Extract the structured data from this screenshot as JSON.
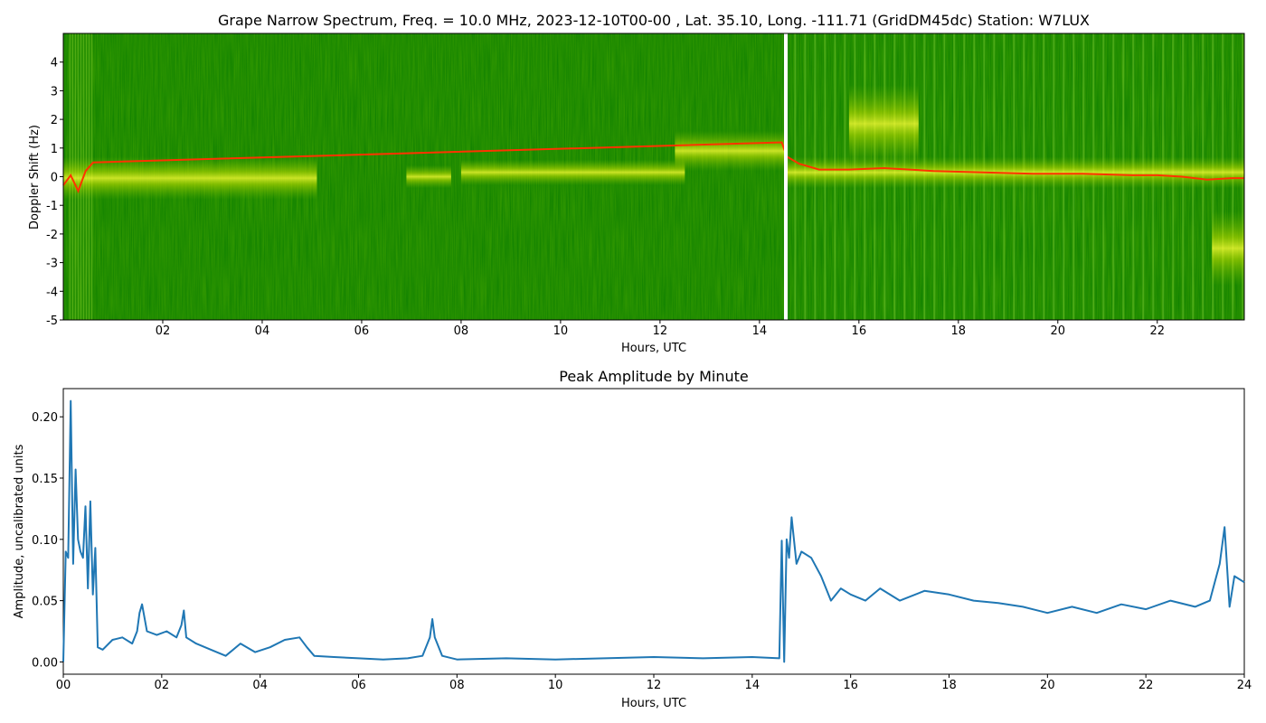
{
  "chart_data": [
    {
      "type": "heatmap",
      "title": "Grape Narrow Spectrum, Freq. = 10.0 MHz, 2023-12-10T00-00 , Lat.  35.10, Long. -111.71 (GridDM45dc) Station: W7LUX",
      "xlabel": "Hours, UTC",
      "ylabel": "Doppler Shift (Hz)",
      "xlim": [
        0,
        23.75
      ],
      "ylim": [
        -5,
        5
      ],
      "x_ticks": [
        "02",
        "04",
        "06",
        "08",
        "10",
        "12",
        "14",
        "16",
        "18",
        "20",
        "22"
      ],
      "x_tick_hours": [
        2,
        4,
        6,
        8,
        10,
        12,
        14,
        16,
        18,
        20,
        22
      ],
      "y_ticks": [
        4,
        3,
        2,
        1,
        0,
        -1,
        -2,
        -3,
        -4,
        -5
      ],
      "grid": false,
      "colors": {
        "background": "#0a7d00",
        "mid": "#7fbf00",
        "high": "#ffff00",
        "peak": "#ff3300",
        "gap": "#ffffff"
      },
      "gap_hour": 14.53,
      "doppler_trace": {
        "x": [
          0.0,
          0.15,
          0.3,
          0.45,
          0.6,
          14.45,
          14.55,
          14.8,
          15.2,
          15.8,
          16.5,
          17.5,
          18.5,
          19.5,
          20.5,
          21.5,
          22.0,
          22.5,
          23.0,
          23.5,
          23.75
        ],
        "y": [
          -0.3,
          0.05,
          -0.5,
          0.2,
          0.5,
          1.2,
          0.7,
          0.45,
          0.25,
          0.25,
          0.3,
          0.2,
          0.15,
          0.1,
          0.1,
          0.05,
          0.05,
          0.0,
          -0.1,
          -0.05,
          -0.05
        ]
      }
    },
    {
      "type": "line",
      "title": "Peak Amplitude by Minute",
      "xlabel": "Hours, UTC",
      "ylabel": "Amplitude, uncalibrated units",
      "xlim": [
        0,
        24
      ],
      "ylim": [
        -0.01,
        0.223
      ],
      "x_ticks": [
        "00",
        "02",
        "04",
        "06",
        "08",
        "10",
        "12",
        "14",
        "16",
        "18",
        "20",
        "22",
        "24"
      ],
      "x_tick_hours": [
        0,
        2,
        4,
        6,
        8,
        10,
        12,
        14,
        16,
        18,
        20,
        22,
        24
      ],
      "y_ticks": [
        "0.00",
        "0.05",
        "0.10",
        "0.15",
        "0.20"
      ],
      "y_tick_values": [
        0,
        0.05,
        0.1,
        0.15,
        0.2
      ],
      "grid": false,
      "line_color": "#1f77b4",
      "x": [
        0.0,
        0.05,
        0.1,
        0.15,
        0.2,
        0.25,
        0.3,
        0.35,
        0.4,
        0.45,
        0.5,
        0.55,
        0.6,
        0.65,
        0.7,
        0.8,
        1.0,
        1.2,
        1.4,
        1.5,
        1.55,
        1.6,
        1.7,
        1.9,
        2.1,
        2.3,
        2.4,
        2.45,
        2.5,
        2.7,
        3.0,
        3.3,
        3.6,
        3.9,
        4.2,
        4.5,
        4.8,
        4.95,
        5.1,
        5.5,
        6.0,
        6.5,
        7.0,
        7.3,
        7.45,
        7.5,
        7.55,
        7.7,
        8.0,
        9.0,
        10.0,
        11.0,
        12.0,
        13.0,
        14.0,
        14.55,
        14.6,
        14.65,
        14.7,
        14.75,
        14.8,
        14.9,
        15.0,
        15.2,
        15.4,
        15.6,
        15.8,
        16.0,
        16.3,
        16.6,
        17.0,
        17.5,
        18.0,
        18.5,
        19.0,
        19.5,
        20.0,
        20.5,
        21.0,
        21.5,
        22.0,
        22.5,
        23.0,
        23.3,
        23.5,
        23.6,
        23.7,
        23.8,
        24.0
      ],
      "y": [
        0.0,
        0.09,
        0.085,
        0.213,
        0.08,
        0.157,
        0.1,
        0.09,
        0.085,
        0.127,
        0.06,
        0.131,
        0.055,
        0.093,
        0.012,
        0.01,
        0.018,
        0.02,
        0.015,
        0.025,
        0.04,
        0.047,
        0.025,
        0.022,
        0.025,
        0.02,
        0.03,
        0.042,
        0.02,
        0.015,
        0.01,
        0.005,
        0.015,
        0.008,
        0.012,
        0.018,
        0.02,
        0.012,
        0.005,
        0.004,
        0.003,
        0.002,
        0.003,
        0.005,
        0.02,
        0.035,
        0.02,
        0.005,
        0.002,
        0.003,
        0.002,
        0.003,
        0.004,
        0.003,
        0.004,
        0.003,
        0.099,
        0.0,
        0.1,
        0.085,
        0.118,
        0.08,
        0.09,
        0.085,
        0.07,
        0.05,
        0.06,
        0.055,
        0.05,
        0.06,
        0.05,
        0.058,
        0.055,
        0.05,
        0.048,
        0.045,
        0.04,
        0.045,
        0.04,
        0.047,
        0.043,
        0.05,
        0.045,
        0.05,
        0.08,
        0.11,
        0.045,
        0.07,
        0.065
      ]
    }
  ]
}
